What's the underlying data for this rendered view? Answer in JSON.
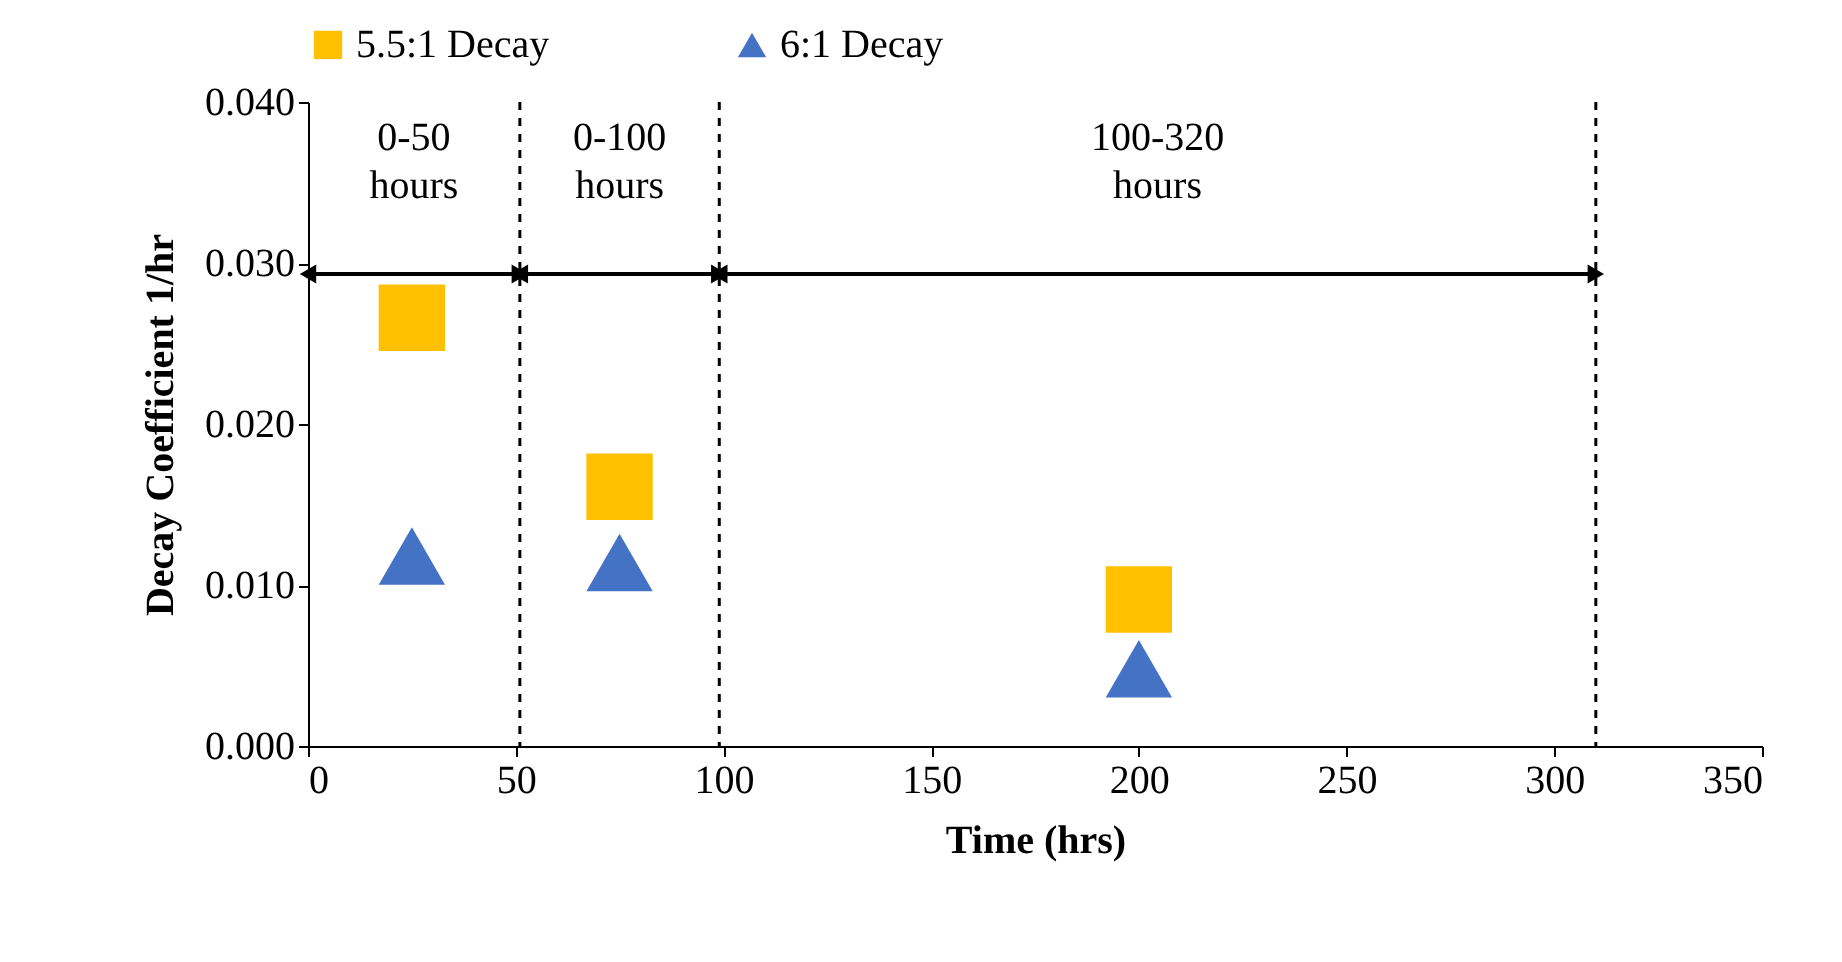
{
  "chart_data": {
    "type": "scatter",
    "xlabel": "Time (hrs)",
    "ylabel": "Decay Coefficient 1/hr",
    "series": [
      {
        "name": "5.5:1 Decay",
        "color": "#ffc000",
        "marker": "square",
        "x": [
          25,
          75,
          200
        ],
        "values": [
          0.0266,
          0.0161,
          0.0091
        ]
      },
      {
        "name": "6:1 Decay",
        "color": "#4472c4",
        "marker": "triangle",
        "x": [
          25,
          75,
          200
        ],
        "values": [
          0.0118,
          0.0114,
          0.0048
        ]
      }
    ],
    "xlim": [
      0,
      350
    ],
    "xticks": [
      0,
      50,
      100,
      150,
      200,
      250,
      300,
      350
    ],
    "ylim": [
      0,
      0.04
    ],
    "yticks": [
      {
        "value": 0,
        "label": "0.000"
      },
      {
        "value": 0.01,
        "label": "0.010"
      },
      {
        "value": 0.02,
        "label": "0.020"
      },
      {
        "value": 0.03,
        "label": "0.030"
      },
      {
        "value": 0.04,
        "label": "0.040"
      }
    ],
    "ref_lines": [
      {
        "axis": "x",
        "value": 51,
        "color": "#000000",
        "line_style": "dashed"
      },
      {
        "axis": "x",
        "value": 99,
        "color": "#000000",
        "line_style": "dashed"
      },
      {
        "axis": "x",
        "value": 310,
        "color": "#000000",
        "line_style": "dashed"
      }
    ],
    "annotations": [
      "0-50 hours",
      "0-100 hours",
      "100-320 hours"
    ],
    "grid": false,
    "legend": "top"
  }
}
